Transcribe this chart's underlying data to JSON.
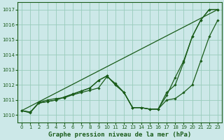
{
  "title": "Graphe pression niveau de la mer (hPa)",
  "bg_color": "#cce8e8",
  "grid_color": "#99ccbb",
  "line_color": "#1a5c1a",
  "marker_color": "#1a5c1a",
  "xlim": [
    -0.5,
    23.5
  ],
  "ylim": [
    1009.5,
    1017.5
  ],
  "xticks": [
    0,
    1,
    2,
    3,
    4,
    5,
    6,
    7,
    8,
    9,
    10,
    11,
    12,
    13,
    14,
    15,
    16,
    17,
    18,
    19,
    20,
    21,
    22,
    23
  ],
  "yticks": [
    1010,
    1011,
    1012,
    1013,
    1014,
    1015,
    1016,
    1017
  ],
  "series": [
    {
      "x": [
        0,
        1,
        2,
        3,
        4,
        5,
        6,
        7,
        8,
        9,
        10,
        11,
        12,
        13,
        14,
        15,
        16,
        17,
        18,
        19,
        20,
        21,
        22,
        23
      ],
      "y": [
        1010.3,
        1010.2,
        1010.8,
        1010.9,
        1011.0,
        1011.2,
        1011.4,
        1011.6,
        1011.8,
        1012.3,
        1012.6,
        1012.0,
        1011.5,
        1010.5,
        1010.5,
        1010.4,
        1010.4,
        1011.0,
        1011.1,
        1011.5,
        1012.0,
        1013.6,
        1015.2,
        1016.3
      ],
      "marker": true
    },
    {
      "x": [
        0,
        1,
        2,
        3,
        4,
        5,
        6,
        7,
        8,
        9,
        10,
        11,
        12,
        13,
        14,
        15,
        16,
        17,
        18,
        19,
        20,
        21,
        22,
        23
      ],
      "y": [
        1010.3,
        1010.2,
        1010.8,
        1010.9,
        1011.0,
        1011.2,
        1011.4,
        1011.6,
        1011.8,
        1012.3,
        1012.6,
        1012.0,
        1011.5,
        1010.5,
        1010.5,
        1010.4,
        1010.4,
        1011.5,
        1012.0,
        1013.5,
        1015.2,
        1016.3,
        1017.0,
        1017.0
      ],
      "marker": true
    },
    {
      "x": [
        0,
        23
      ],
      "y": [
        1010.3,
        1017.0
      ],
      "marker": false
    },
    {
      "x": [
        0,
        1,
        2,
        3,
        4,
        5,
        6,
        7,
        8,
        9,
        10,
        11,
        12,
        13,
        14,
        15,
        16,
        17,
        18,
        19,
        20,
        21,
        22,
        23
      ],
      "y": [
        1010.3,
        1010.15,
        1010.85,
        1011.0,
        1011.1,
        1011.15,
        1011.35,
        1011.5,
        1011.65,
        1011.8,
        1012.55,
        1012.1,
        1011.5,
        1010.5,
        1010.5,
        1010.4,
        1010.4,
        1011.3,
        1012.5,
        1013.6,
        1015.2,
        1016.3,
        1017.0,
        1017.0
      ],
      "marker": true
    }
  ]
}
